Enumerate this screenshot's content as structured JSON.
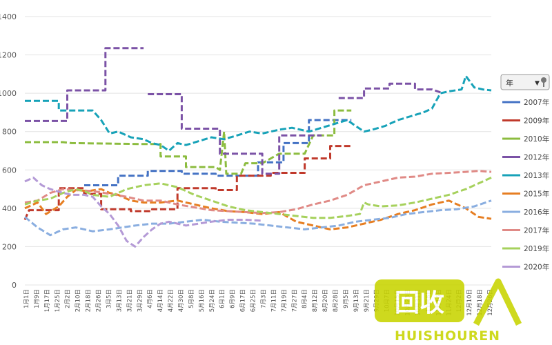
{
  "chart_data": {
    "type": "line",
    "title": "",
    "xlabel": "",
    "ylabel": "",
    "ylim": [
      0,
      1400
    ],
    "yticks": [
      "0",
      "200",
      "400",
      "600",
      "800",
      "1000",
      "1200",
      "1400"
    ],
    "grid": "horizontal",
    "legend_position": "right",
    "filter_label": "年",
    "x_ticks": [
      "1月1日",
      "1月9日",
      "1月17日",
      "1月25日",
      "2月2日",
      "2月10日",
      "2月18日",
      "2月26日",
      "3月5日",
      "3月13日",
      "3月21日",
      "3月29日",
      "4月6日",
      "4月14日",
      "4月22日",
      "4月30日",
      "5月8日",
      "5月16日",
      "5月24日",
      "6月1日",
      "6月9日",
      "6月17日",
      "6月25日",
      "7月3日",
      "7月11日",
      "7月19日",
      "7月27日",
      "8月4日",
      "8月12日",
      "8月20日",
      "8月28日",
      "9月5日",
      "9月13日",
      "9月21日",
      "9月29日",
      "10月7日",
      "10月15日",
      "10月23日",
      "10月31日",
      "11月8日",
      "11月16日",
      "11月24日",
      "12月2日",
      "12月10日",
      "12月18日",
      "12月26日"
    ],
    "series": [
      {
        "name": "2007年",
        "color": "#4472c4",
        "style": "dash",
        "points": [
          [
            14,
            520
          ],
          [
            22,
            520
          ],
          [
            22,
            570
          ],
          [
            29,
            570
          ],
          [
            29,
            595
          ],
          [
            37,
            595
          ],
          [
            37,
            580
          ],
          [
            45,
            580
          ],
          [
            45,
            570
          ],
          [
            55,
            570
          ],
          [
            55,
            640
          ],
          [
            61,
            640
          ],
          [
            61,
            740
          ],
          [
            67,
            740
          ],
          [
            67,
            860
          ],
          [
            77,
            860
          ]
        ]
      },
      {
        "name": "2009年",
        "color": "#c0392b",
        "style": "dash",
        "points": [
          [
            0,
            340
          ],
          [
            1,
            390
          ],
          [
            8,
            390
          ],
          [
            8,
            505
          ],
          [
            14,
            505
          ],
          [
            14,
            475
          ],
          [
            18,
            475
          ],
          [
            18,
            395
          ],
          [
            25,
            395
          ],
          [
            25,
            385
          ],
          [
            30,
            385
          ],
          [
            30,
            395
          ],
          [
            36,
            395
          ],
          [
            36,
            505
          ],
          [
            45,
            505
          ],
          [
            45,
            495
          ],
          [
            50,
            495
          ],
          [
            50,
            570
          ],
          [
            58,
            570
          ],
          [
            58,
            585
          ],
          [
            66,
            585
          ],
          [
            66,
            660
          ],
          [
            72,
            660
          ],
          [
            72,
            725
          ],
          [
            77,
            725
          ]
        ]
      },
      {
        "name": "2010年",
        "color": "#8cbc3f",
        "style": "dash",
        "points": [
          [
            0,
            745
          ],
          [
            9,
            745
          ],
          [
            11,
            740
          ],
          [
            28,
            735
          ],
          [
            32,
            735
          ],
          [
            32,
            670
          ],
          [
            38,
            670
          ],
          [
            38,
            615
          ],
          [
            45,
            615
          ],
          [
            46,
            600
          ],
          [
            47,
            800
          ],
          [
            47.5,
            580
          ],
          [
            51,
            580
          ],
          [
            52,
            635
          ],
          [
            56,
            635
          ],
          [
            60,
            685
          ],
          [
            66,
            685
          ],
          [
            68,
            780
          ],
          [
            73,
            780
          ],
          [
            73,
            910
          ],
          [
            77,
            910
          ]
        ]
      },
      {
        "name": "2012年",
        "color": "#7b52a6",
        "style": "dash",
        "points": [
          [
            0,
            855
          ],
          [
            10,
            855
          ],
          [
            10,
            1015
          ],
          [
            19,
            1015
          ],
          [
            19,
            1235
          ],
          [
            28,
            1235
          ]
        ]
      },
      {
        "name": "2012年_b",
        "color": "#7b52a6",
        "style": "dash",
        "points": [
          [
            29,
            995
          ],
          [
            37,
            995
          ],
          [
            37,
            815
          ],
          [
            46,
            815
          ],
          [
            46,
            685
          ],
          [
            56,
            685
          ],
          [
            56,
            580
          ],
          [
            60,
            580
          ],
          [
            60,
            780
          ],
          [
            70,
            780
          ]
        ]
      },
      {
        "name": "2012年_c",
        "color": "#7b52a6",
        "style": "dash",
        "points": [
          [
            74,
            975
          ],
          [
            80,
            975
          ],
          [
            80,
            1025
          ],
          [
            86,
            1025
          ],
          [
            86,
            1050
          ],
          [
            92,
            1050
          ],
          [
            92,
            1020
          ],
          [
            96,
            1020
          ],
          [
            98,
            1005
          ]
        ]
      },
      {
        "name": "2013年",
        "color": "#17a2b8",
        "style": "dash",
        "points": [
          [
            0,
            960
          ],
          [
            8,
            960
          ],
          [
            8,
            910
          ],
          [
            16,
            910
          ],
          [
            18,
            860
          ],
          [
            20,
            790
          ],
          [
            22,
            800
          ],
          [
            25,
            770
          ],
          [
            28,
            760
          ],
          [
            30,
            740
          ],
          [
            32,
            730
          ],
          [
            34,
            700
          ],
          [
            36,
            740
          ],
          [
            38,
            730
          ],
          [
            41,
            750
          ],
          [
            44,
            770
          ],
          [
            47,
            760
          ],
          [
            50,
            780
          ],
          [
            53,
            800
          ],
          [
            56,
            790
          ],
          [
            60,
            810
          ],
          [
            63,
            820
          ],
          [
            67,
            800
          ],
          [
            70,
            820
          ],
          [
            73,
            840
          ],
          [
            76,
            860
          ],
          [
            78,
            830
          ],
          [
            80,
            800
          ],
          [
            82,
            810
          ],
          [
            85,
            830
          ],
          [
            88,
            860
          ],
          [
            91,
            880
          ],
          [
            94,
            900
          ],
          [
            96,
            920
          ],
          [
            98,
            1000
          ],
          [
            100,
            1010
          ],
          [
            103,
            1020
          ],
          [
            104,
            1090
          ],
          [
            106,
            1030
          ],
          [
            108,
            1020
          ],
          [
            110,
            1015
          ]
        ]
      },
      {
        "name": "2015年",
        "color": "#e67e22",
        "style": "dash",
        "points": [
          [
            0,
            400
          ],
          [
            3,
            430
          ],
          [
            5,
            370
          ],
          [
            8,
            410
          ],
          [
            10,
            460
          ],
          [
            12,
            495
          ],
          [
            15,
            490
          ],
          [
            18,
            500
          ],
          [
            20,
            480
          ],
          [
            22,
            470
          ],
          [
            25,
            440
          ],
          [
            28,
            430
          ],
          [
            32,
            430
          ],
          [
            36,
            440
          ],
          [
            40,
            420
          ],
          [
            44,
            400
          ],
          [
            48,
            385
          ],
          [
            52,
            380
          ],
          [
            56,
            370
          ],
          [
            60,
            380
          ],
          [
            64,
            330
          ],
          [
            68,
            310
          ],
          [
            72,
            290
          ],
          [
            76,
            300
          ],
          [
            80,
            320
          ],
          [
            84,
            340
          ],
          [
            88,
            370
          ],
          [
            92,
            390
          ],
          [
            96,
            420
          ],
          [
            100,
            440
          ],
          [
            104,
            400
          ],
          [
            107,
            355
          ],
          [
            110,
            345
          ]
        ]
      },
      {
        "name": "2016年",
        "color": "#8aaee0",
        "style": "dash",
        "points": [
          [
            0,
            355
          ],
          [
            3,
            300
          ],
          [
            6,
            260
          ],
          [
            9,
            290
          ],
          [
            12,
            300
          ],
          [
            16,
            280
          ],
          [
            20,
            290
          ],
          [
            23,
            300
          ],
          [
            26,
            310
          ],
          [
            30,
            320
          ],
          [
            34,
            320
          ],
          [
            38,
            330
          ],
          [
            42,
            340
          ],
          [
            46,
            330
          ],
          [
            50,
            325
          ],
          [
            54,
            320
          ],
          [
            58,
            310
          ],
          [
            62,
            300
          ],
          [
            66,
            290
          ],
          [
            70,
            300
          ],
          [
            74,
            310
          ],
          [
            78,
            330
          ],
          [
            82,
            340
          ],
          [
            86,
            350
          ],
          [
            90,
            370
          ],
          [
            94,
            380
          ],
          [
            98,
            390
          ],
          [
            102,
            395
          ],
          [
            106,
            410
          ],
          [
            110,
            440
          ]
        ]
      },
      {
        "name": "2017年",
        "color": "#e08a86",
        "style": "dash",
        "points": [
          [
            0,
            430
          ],
          [
            3,
            440
          ],
          [
            6,
            480
          ],
          [
            9,
            500
          ],
          [
            12,
            495
          ],
          [
            16,
            490
          ],
          [
            20,
            475
          ],
          [
            24,
            460
          ],
          [
            28,
            440
          ],
          [
            32,
            440
          ],
          [
            36,
            420
          ],
          [
            40,
            405
          ],
          [
            44,
            390
          ],
          [
            48,
            385
          ],
          [
            52,
            380
          ],
          [
            56,
            375
          ],
          [
            60,
            380
          ],
          [
            64,
            395
          ],
          [
            68,
            420
          ],
          [
            72,
            440
          ],
          [
            76,
            470
          ],
          [
            80,
            520
          ],
          [
            84,
            540
          ],
          [
            88,
            560
          ],
          [
            92,
            565
          ],
          [
            96,
            580
          ],
          [
            100,
            585
          ],
          [
            104,
            590
          ],
          [
            107,
            595
          ],
          [
            110,
            590
          ]
        ]
      },
      {
        "name": "2019年",
        "color": "#a6d15c",
        "style": "dash",
        "points": [
          [
            0,
            420
          ],
          [
            3,
            440
          ],
          [
            6,
            450
          ],
          [
            9,
            480
          ],
          [
            12,
            500
          ],
          [
            14,
            490
          ],
          [
            16,
            470
          ],
          [
            20,
            460
          ],
          [
            24,
            500
          ],
          [
            28,
            520
          ],
          [
            32,
            530
          ],
          [
            36,
            510
          ],
          [
            40,
            470
          ],
          [
            44,
            440
          ],
          [
            48,
            410
          ],
          [
            52,
            390
          ],
          [
            56,
            380
          ],
          [
            60,
            370
          ],
          [
            64,
            360
          ],
          [
            68,
            350
          ],
          [
            72,
            350
          ],
          [
            76,
            360
          ],
          [
            79,
            370
          ],
          [
            80,
            430
          ],
          [
            81,
            420
          ],
          [
            84,
            410
          ],
          [
            88,
            415
          ],
          [
            92,
            430
          ],
          [
            96,
            450
          ],
          [
            100,
            470
          ],
          [
            104,
            500
          ],
          [
            108,
            540
          ],
          [
            110,
            560
          ]
        ]
      },
      {
        "name": "2020年",
        "color": "#b49ad6",
        "style": "dash",
        "points": [
          [
            0,
            540
          ],
          [
            2,
            560
          ],
          [
            4,
            520
          ],
          [
            6,
            500
          ],
          [
            9,
            480
          ],
          [
            11,
            470
          ],
          [
            14,
            470
          ],
          [
            16,
            460
          ],
          [
            18,
            410
          ],
          [
            20,
            370
          ],
          [
            22,
            310
          ],
          [
            24,
            230
          ],
          [
            26,
            200
          ],
          [
            28,
            250
          ],
          [
            30,
            290
          ],
          [
            32,
            320
          ],
          [
            34,
            330
          ],
          [
            36,
            320
          ],
          [
            38,
            310
          ],
          [
            41,
            320
          ],
          [
            44,
            330
          ],
          [
            48,
            340
          ],
          [
            52,
            340
          ],
          [
            56,
            335
          ]
        ]
      }
    ],
    "legend": [
      {
        "label": "2007年",
        "color": "#4472c4"
      },
      {
        "label": "2009年",
        "color": "#c0392b"
      },
      {
        "label": "2010年",
        "color": "#8cbc3f"
      },
      {
        "label": "2012年",
        "color": "#7b52a6"
      },
      {
        "label": "2013年",
        "color": "#17a2b8"
      },
      {
        "label": "2015年",
        "color": "#e67e22"
      },
      {
        "label": "2016年",
        "color": "#8aaee0"
      },
      {
        "label": "2017年",
        "color": "#e08a86"
      },
      {
        "label": "2019年",
        "color": "#a6d15c"
      },
      {
        "label": "2020年",
        "color": "#b49ad6"
      }
    ]
  },
  "watermark": {
    "brand": "HUISHOUREN",
    "logo_chars": "回收",
    "color": "#c8d400"
  }
}
